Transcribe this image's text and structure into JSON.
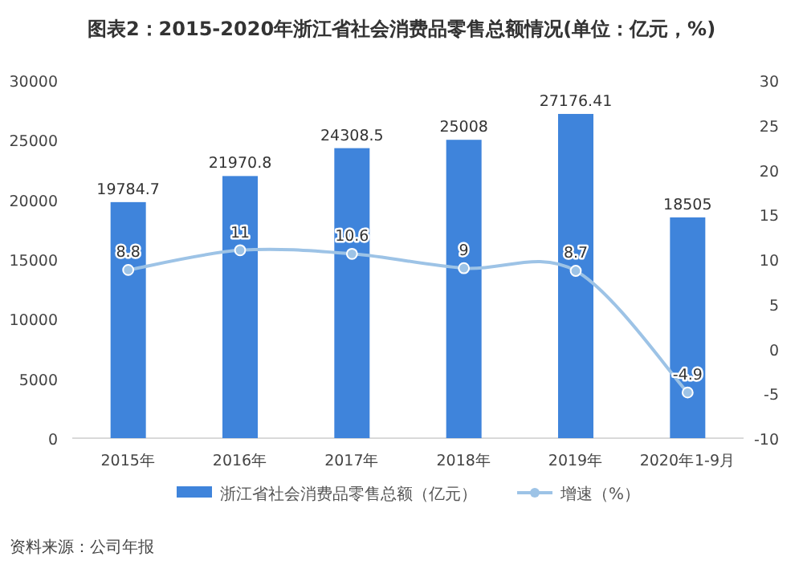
{
  "chart_data": {
    "type": "bar",
    "title": "图表2：2015-2020年浙江省社会消费品零售总额情况(单位：亿元，%)",
    "categories": [
      "2015年",
      "2016年",
      "2017年",
      "2018年",
      "2019年",
      "2020年1-9月"
    ],
    "series": [
      {
        "name": "浙江省社会消费品零售总额（亿元）",
        "color": "#3f84db",
        "values": [
          19784.7,
          21970.8,
          24308.5,
          25008,
          27176.41,
          18505
        ]
      },
      {
        "name": "增速（%）",
        "type": "line",
        "axis": "y2",
        "marker": "circle",
        "color": "#9dc3e6",
        "values": [
          8.8,
          11,
          10.6,
          9,
          8.7,
          -4.9
        ]
      }
    ],
    "ylim": [
      0,
      30000
    ],
    "yticks": [
      0,
      5000,
      10000,
      15000,
      20000,
      25000,
      30000
    ],
    "y2lim": [
      -10,
      30
    ],
    "y2ticks": [
      -10,
      -5,
      0,
      5,
      10,
      15,
      20,
      25,
      30
    ],
    "data_labels": true,
    "legend": "bottom",
    "annotations": [
      "资料来源：公司年报"
    ]
  }
}
